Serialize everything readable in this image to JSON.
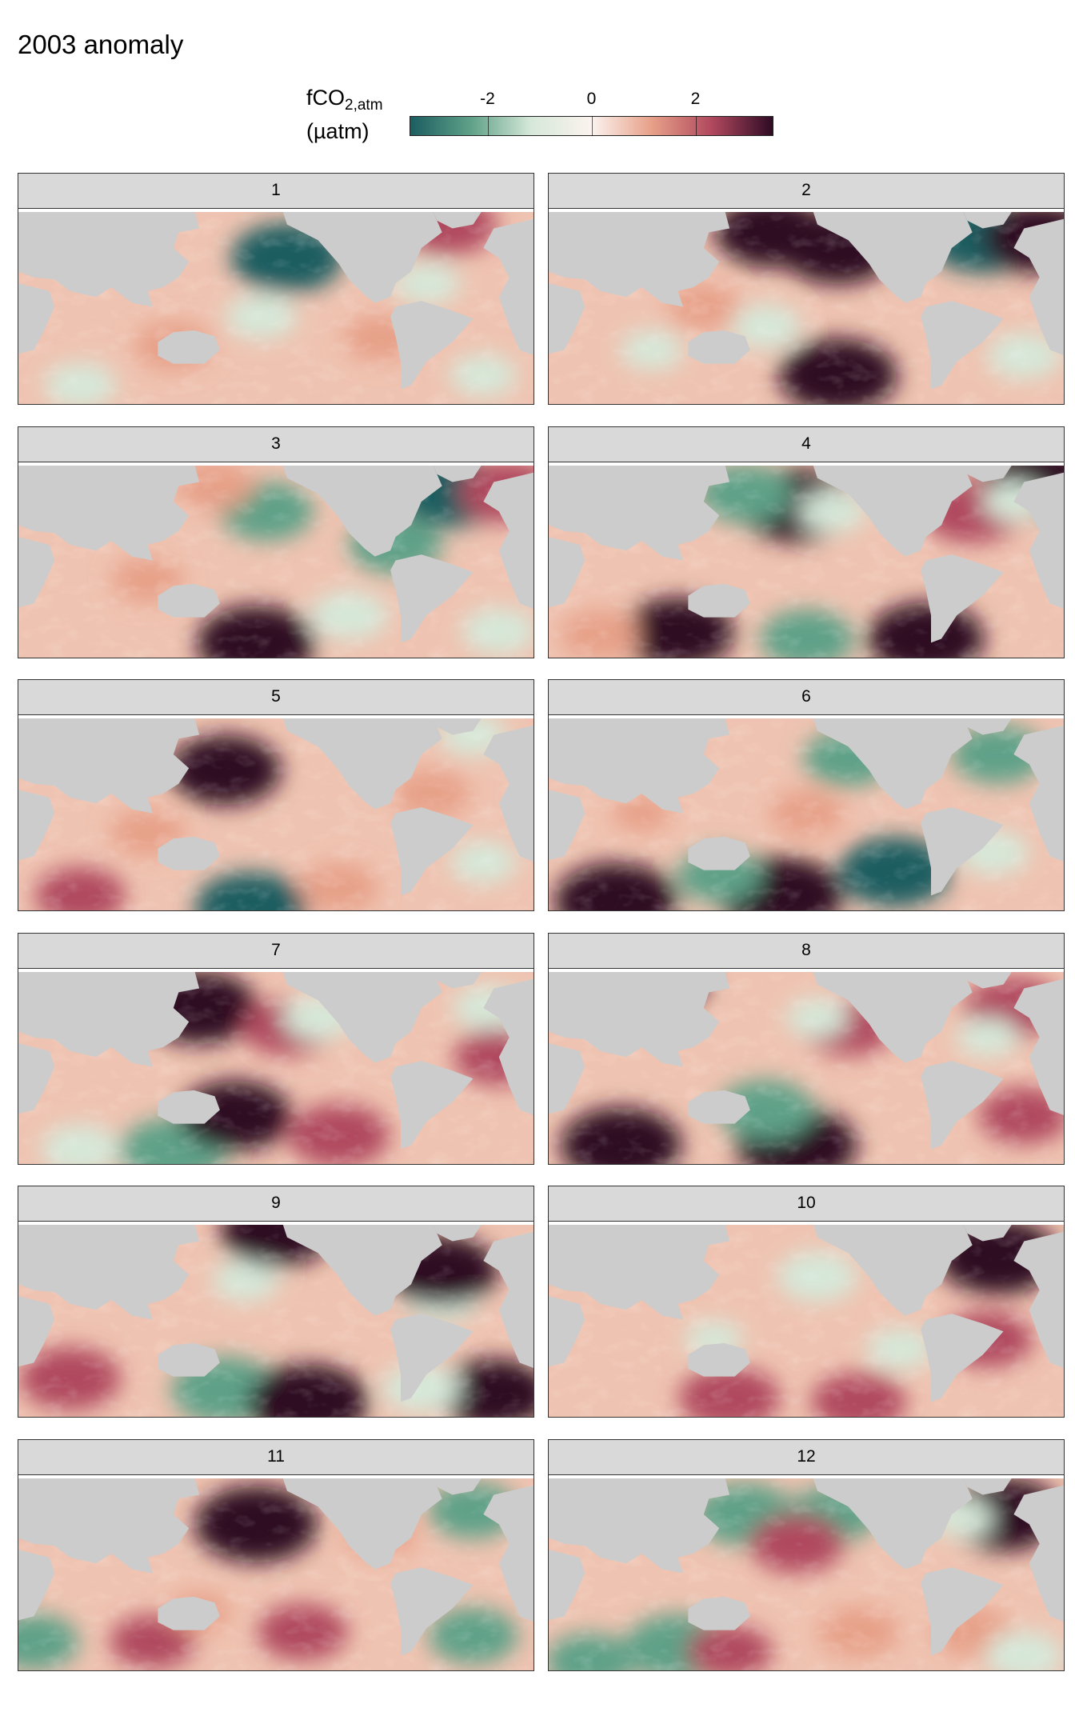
{
  "title": "2003 anomaly",
  "legend": {
    "title_main": "fCO",
    "title_sub": "2,atm",
    "title_unit": "(µatm)",
    "ticks": [
      {
        "label": "-2",
        "value": -2
      },
      {
        "label": "0",
        "value": 0
      },
      {
        "label": "2",
        "value": 2
      }
    ],
    "range": [
      -3.5,
      3.5
    ],
    "colors": [
      "#1c5d61",
      "#5fa188",
      "#d6e8d9",
      "#fbf3ef",
      "#e7a088",
      "#b0485e",
      "#2e0b24"
    ]
  },
  "land_color": "#cccccc",
  "chart_data": {
    "type": "heatmap",
    "panels": [
      {
        "label": "1",
        "blobs": [
          [
            0.52,
            0.25,
            -3.0
          ],
          [
            0.47,
            0.55,
            -1.2
          ],
          [
            0.83,
            0.08,
            2.4
          ],
          [
            0.79,
            0.38,
            -1.0
          ],
          [
            0.06,
            0.05,
            -1.6
          ],
          [
            0.12,
            0.9,
            -1.2
          ],
          [
            0.9,
            0.85,
            -1.0
          ],
          [
            0.3,
            0.7,
            1.5
          ],
          [
            0.7,
            0.66,
            1.3
          ]
        ]
      },
      {
        "label": "2",
        "blobs": [
          [
            0.43,
            0.12,
            3.0
          ],
          [
            0.56,
            0.2,
            3.2
          ],
          [
            0.84,
            0.15,
            -3.0
          ],
          [
            0.95,
            0.15,
            3.0
          ],
          [
            0.56,
            0.85,
            3.3
          ],
          [
            0.42,
            0.6,
            -1.2
          ],
          [
            0.92,
            0.75,
            -1.3
          ],
          [
            0.2,
            0.72,
            -0.8
          ],
          [
            0.3,
            0.5,
            1.2
          ]
        ]
      },
      {
        "label": "3",
        "blobs": [
          [
            0.48,
            0.25,
            -2.2
          ],
          [
            0.84,
            0.15,
            -3.0
          ],
          [
            0.95,
            0.15,
            2.5
          ],
          [
            0.73,
            0.42,
            -2.2
          ],
          [
            0.46,
            0.92,
            3.3
          ],
          [
            0.64,
            0.78,
            -1.5
          ],
          [
            0.93,
            0.86,
            -1.3
          ],
          [
            0.38,
            0.12,
            1.5
          ],
          [
            0.25,
            0.6,
            1.2
          ]
        ]
      },
      {
        "label": "4",
        "blobs": [
          [
            0.48,
            0.22,
            3.2
          ],
          [
            0.38,
            0.16,
            -2.2
          ],
          [
            0.55,
            0.25,
            -1.0
          ],
          [
            0.95,
            0.1,
            3.2
          ],
          [
            0.82,
            0.25,
            2.5
          ],
          [
            0.25,
            0.87,
            3.0
          ],
          [
            0.5,
            0.9,
            -2.2
          ],
          [
            0.73,
            0.9,
            3.2
          ],
          [
            0.9,
            0.2,
            -0.8
          ],
          [
            0.1,
            0.88,
            1.5
          ]
        ]
      },
      {
        "label": "5",
        "blobs": [
          [
            0.4,
            0.28,
            3.0
          ],
          [
            0.45,
            0.98,
            -3.0
          ],
          [
            0.62,
            0.88,
            1.5
          ],
          [
            0.25,
            0.6,
            1.3
          ],
          [
            0.8,
            0.4,
            1.4
          ],
          [
            0.88,
            0.1,
            -1.0
          ],
          [
            0.9,
            0.75,
            -1.0
          ],
          [
            0.12,
            0.92,
            2.0
          ]
        ]
      },
      {
        "label": "6",
        "blobs": [
          [
            0.13,
            0.95,
            3.5
          ],
          [
            0.45,
            0.92,
            3.5
          ],
          [
            0.33,
            0.82,
            -1.8
          ],
          [
            0.67,
            0.8,
            -3.0
          ],
          [
            0.58,
            0.22,
            -2.0
          ],
          [
            0.87,
            0.2,
            -2.2
          ],
          [
            0.86,
            0.7,
            -1.2
          ],
          [
            0.5,
            0.5,
            1.3
          ],
          [
            0.18,
            0.5,
            0.6
          ]
        ]
      },
      {
        "label": "7",
        "blobs": [
          [
            0.35,
            0.2,
            3.2
          ],
          [
            0.52,
            0.3,
            2.0
          ],
          [
            0.58,
            0.25,
            -1.2
          ],
          [
            0.3,
            0.93,
            -2.8
          ],
          [
            0.12,
            0.92,
            -1.5
          ],
          [
            0.42,
            0.75,
            3.0
          ],
          [
            0.62,
            0.85,
            2.5
          ],
          [
            0.91,
            0.2,
            -1.2
          ],
          [
            0.93,
            0.45,
            2.0
          ],
          [
            0.06,
            0.02,
            3.0
          ]
        ]
      },
      {
        "label": "8",
        "blobs": [
          [
            0.14,
            0.9,
            3.4
          ],
          [
            0.48,
            0.9,
            3.4
          ],
          [
            0.42,
            0.72,
            -2.3
          ],
          [
            0.58,
            0.3,
            2.0
          ],
          [
            0.52,
            0.25,
            -0.8
          ],
          [
            0.9,
            0.2,
            2.4
          ],
          [
            0.85,
            0.35,
            -0.8
          ],
          [
            0.92,
            0.75,
            2.0
          ],
          [
            0.2,
            0.05,
            3.0
          ]
        ]
      },
      {
        "label": "9",
        "blobs": [
          [
            0.4,
            0.86,
            -2.8
          ],
          [
            0.56,
            0.92,
            3.4
          ],
          [
            0.82,
            0.4,
            -1.3
          ],
          [
            0.92,
            0.88,
            3.0
          ],
          [
            0.78,
            0.85,
            -1.5
          ],
          [
            0.44,
            0.3,
            -1.0
          ],
          [
            0.1,
            0.8,
            2.5
          ],
          [
            0.5,
            0.05,
            3.0
          ],
          [
            0.82,
            0.25,
            3.0
          ],
          [
            0.12,
            0.08,
            -1.2
          ]
        ]
      },
      {
        "label": "10",
        "blobs": [
          [
            0.87,
            0.18,
            3.4
          ],
          [
            0.52,
            0.28,
            -1.6
          ],
          [
            0.35,
            0.9,
            2.5
          ],
          [
            0.6,
            0.92,
            2.2
          ],
          [
            0.68,
            0.65,
            -1.0
          ],
          [
            0.32,
            0.6,
            -0.6
          ],
          [
            0.85,
            0.6,
            2.0
          ],
          [
            0.1,
            0.05,
            2.5
          ]
        ]
      },
      {
        "label": "11",
        "blobs": [
          [
            0.46,
            0.25,
            3.6
          ],
          [
            0.04,
            0.05,
            3.2
          ],
          [
            0.88,
            0.18,
            -2.0
          ],
          [
            0.88,
            0.82,
            -2.0
          ],
          [
            0.03,
            0.85,
            -2.0
          ],
          [
            0.26,
            0.85,
            1.8
          ],
          [
            0.55,
            0.8,
            2.0
          ],
          [
            0.7,
            0.3,
            1.2
          ],
          [
            0.35,
            0.7,
            0.8
          ]
        ]
      },
      {
        "label": "12",
        "blobs": [
          [
            0.38,
            0.2,
            -2.5
          ],
          [
            0.55,
            0.2,
            -2.0
          ],
          [
            0.48,
            0.35,
            2.2
          ],
          [
            0.88,
            0.2,
            3.2
          ],
          [
            0.8,
            0.22,
            -0.8
          ],
          [
            0.08,
            0.95,
            -2.0
          ],
          [
            0.25,
            0.88,
            -2.8
          ],
          [
            0.35,
            0.9,
            1.8
          ],
          [
            0.6,
            0.8,
            1.6
          ],
          [
            0.82,
            0.8,
            1.5
          ],
          [
            0.92,
            0.92,
            -1.5
          ],
          [
            0.05,
            0.05,
            -1.5
          ]
        ]
      }
    ]
  }
}
